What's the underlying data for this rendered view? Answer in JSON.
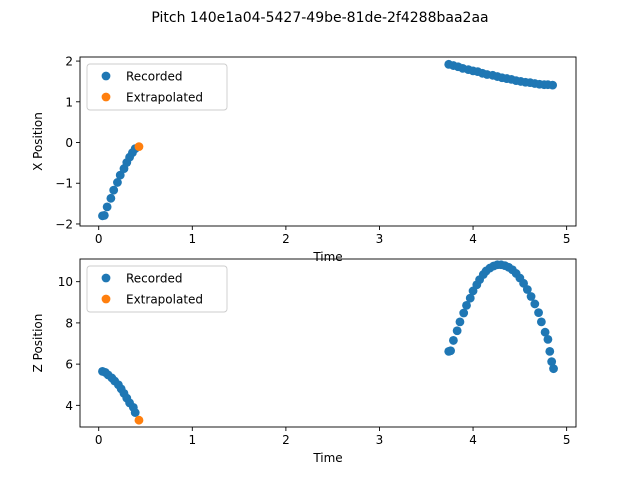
{
  "figure": {
    "title": "Pitch 140e1a04-5427-49be-81de-2f4288baa2aa"
  },
  "colors": {
    "recorded": "#1f77b4",
    "extrapolated": "#ff7f0e",
    "axes": "#000000"
  },
  "chart_data": [
    {
      "type": "scatter",
      "xlabel": "Time",
      "ylabel": "X Position",
      "xlim": [
        -0.2,
        5.1
      ],
      "ylim": [
        -2.05,
        2.1
      ],
      "xticks": [
        0,
        1,
        2,
        3,
        4,
        5
      ],
      "yticks": [
        -2,
        -1,
        0,
        1,
        2
      ],
      "legend": {
        "placement": "top-left",
        "entries": [
          "Recorded",
          "Extrapolated"
        ]
      },
      "series": [
        {
          "name": "Recorded",
          "color": "#1f77b4",
          "points": [
            [
              0.04,
              -1.8
            ],
            [
              0.06,
              -1.79
            ],
            [
              0.09,
              -1.58
            ],
            [
              0.13,
              -1.37
            ],
            [
              0.16,
              -1.17
            ],
            [
              0.2,
              -0.98
            ],
            [
              0.23,
              -0.8
            ],
            [
              0.27,
              -0.64
            ],
            [
              0.3,
              -0.49
            ],
            [
              0.33,
              -0.36
            ],
            [
              0.36,
              -0.25
            ],
            [
              0.39,
              -0.15
            ],
            [
              3.74,
              1.92
            ],
            [
              3.79,
              1.89
            ],
            [
              3.84,
              1.86
            ],
            [
              3.89,
              1.82
            ],
            [
              3.95,
              1.79
            ],
            [
              4.0,
              1.76
            ],
            [
              4.05,
              1.74
            ],
            [
              4.1,
              1.7
            ],
            [
              4.15,
              1.67
            ],
            [
              4.21,
              1.65
            ],
            [
              4.26,
              1.62
            ],
            [
              4.31,
              1.59
            ],
            [
              4.36,
              1.57
            ],
            [
              4.41,
              1.55
            ],
            [
              4.46,
              1.52
            ],
            [
              4.51,
              1.5
            ],
            [
              4.56,
              1.48
            ],
            [
              4.61,
              1.47
            ],
            [
              4.66,
              1.45
            ],
            [
              4.71,
              1.43
            ],
            [
              4.76,
              1.42
            ],
            [
              4.8,
              1.42
            ],
            [
              4.85,
              1.41
            ]
          ]
        },
        {
          "name": "Extrapolated",
          "color": "#ff7f0e",
          "points": [
            [
              0.43,
              -0.1
            ]
          ]
        }
      ]
    },
    {
      "type": "scatter",
      "xlabel": "Time",
      "ylabel": "Z Position",
      "xlim": [
        -0.2,
        5.1
      ],
      "ylim": [
        2.95,
        11.1
      ],
      "xticks": [
        0,
        1,
        2,
        3,
        4,
        5
      ],
      "yticks": [
        4,
        6,
        8,
        10
      ],
      "legend": {
        "placement": "top-left",
        "entries": [
          "Recorded",
          "Extrapolated"
        ]
      },
      "series": [
        {
          "name": "Recorded",
          "color": "#1f77b4",
          "points": [
            [
              0.04,
              5.65
            ],
            [
              0.07,
              5.6
            ],
            [
              0.1,
              5.48
            ],
            [
              0.14,
              5.33
            ],
            [
              0.17,
              5.18
            ],
            [
              0.21,
              5.0
            ],
            [
              0.24,
              4.8
            ],
            [
              0.27,
              4.58
            ],
            [
              0.3,
              4.35
            ],
            [
              0.33,
              4.12
            ],
            [
              0.37,
              3.9
            ],
            [
              0.39,
              3.65
            ],
            [
              3.74,
              6.62
            ],
            [
              3.76,
              6.65
            ],
            [
              3.79,
              7.15
            ],
            [
              3.83,
              7.62
            ],
            [
              3.86,
              8.05
            ],
            [
              3.9,
              8.48
            ],
            [
              3.93,
              8.85
            ],
            [
              3.97,
              9.2
            ],
            [
              4.0,
              9.55
            ],
            [
              4.04,
              9.85
            ],
            [
              4.07,
              10.1
            ],
            [
              4.11,
              10.35
            ],
            [
              4.14,
              10.52
            ],
            [
              4.18,
              10.66
            ],
            [
              4.22,
              10.76
            ],
            [
              4.26,
              10.82
            ],
            [
              4.3,
              10.82
            ],
            [
              4.34,
              10.78
            ],
            [
              4.38,
              10.7
            ],
            [
              4.42,
              10.58
            ],
            [
              4.46,
              10.4
            ],
            [
              4.5,
              10.18
            ],
            [
              4.54,
              9.92
            ],
            [
              4.58,
              9.62
            ],
            [
              4.62,
              9.28
            ],
            [
              4.66,
              8.92
            ],
            [
              4.7,
              8.5
            ],
            [
              4.73,
              8.05
            ],
            [
              4.77,
              7.55
            ],
            [
              4.8,
              7.2
            ],
            [
              4.82,
              6.62
            ],
            [
              4.84,
              6.12
            ],
            [
              4.86,
              5.78
            ]
          ]
        },
        {
          "name": "Extrapolated",
          "color": "#ff7f0e",
          "points": [
            [
              0.43,
              3.28
            ]
          ]
        }
      ]
    }
  ]
}
